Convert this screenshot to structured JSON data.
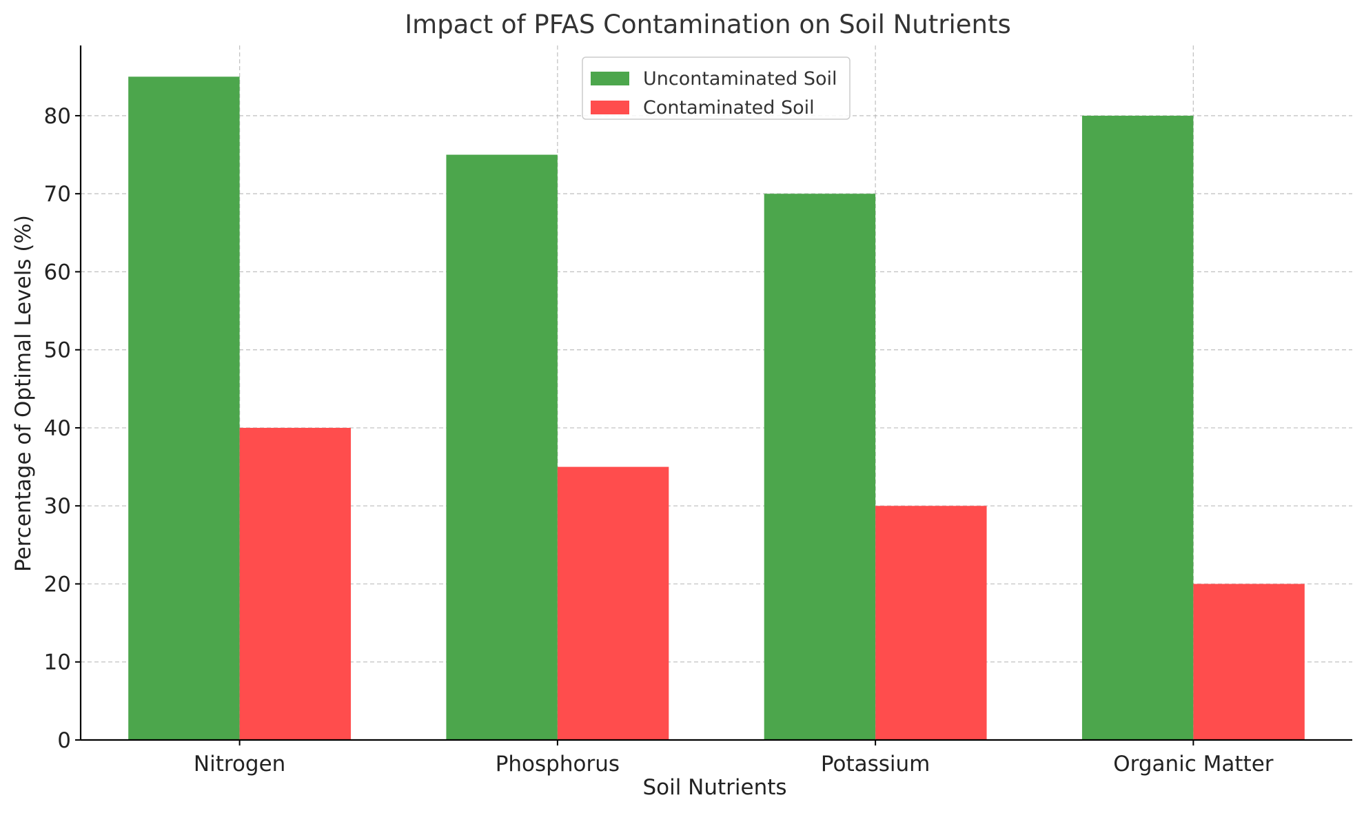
{
  "chart_data": {
    "type": "bar",
    "title": "Impact of PFAS Contamination on Soil Nutrients",
    "xlabel": "Soil Nutrients",
    "ylabel": "Percentage of Optimal Levels (%)",
    "categories": [
      "Nitrogen",
      "Phosphorus",
      "Potassium",
      "Organic Matter"
    ],
    "series": [
      {
        "name": "Uncontaminated Soil",
        "color": "#4ca64c",
        "values": [
          85,
          75,
          70,
          80
        ]
      },
      {
        "name": "Contaminated Soil",
        "color": "#ff4d4d",
        "values": [
          40,
          35,
          30,
          20
        ]
      }
    ],
    "ylim": [
      0,
      89
    ],
    "yticks": [
      0,
      10,
      20,
      30,
      40,
      50,
      60,
      70,
      80
    ],
    "grid": true,
    "legend_position": "top-center"
  }
}
